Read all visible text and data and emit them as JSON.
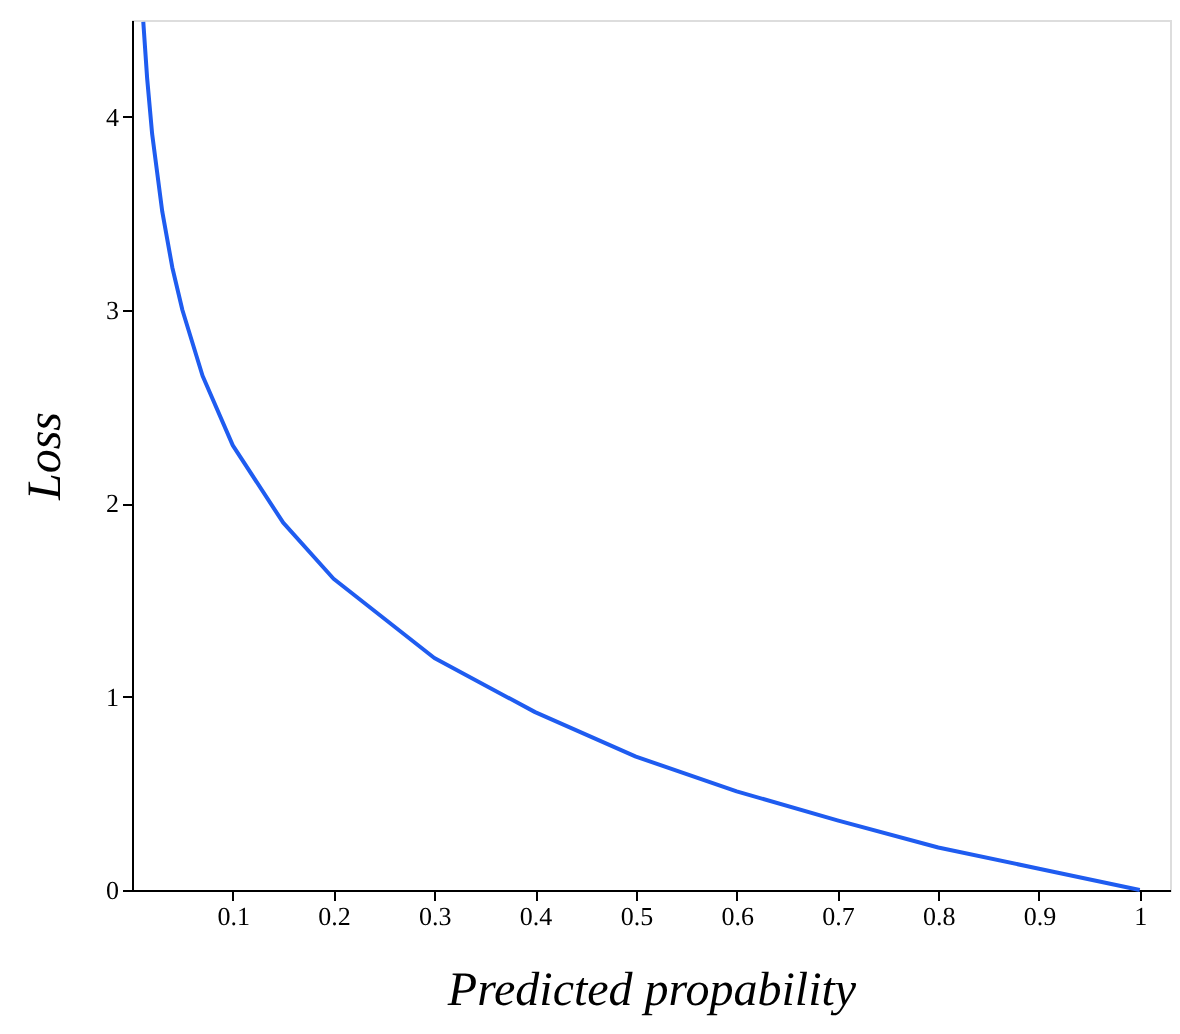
{
  "chart_data": {
    "type": "line",
    "xlabel": "Predicted  propability",
    "ylabel": "Loss",
    "x": [
      0.0112,
      0.015,
      0.02,
      0.03,
      0.04,
      0.05,
      0.07,
      0.1,
      0.15,
      0.2,
      0.3,
      0.4,
      0.5,
      0.6,
      0.7,
      0.8,
      0.9,
      1
    ],
    "series": [
      {
        "color": "#1f5cf0",
        "values": [
          4.49,
          4.2,
          3.91,
          3.51,
          3.22,
          3.0,
          2.66,
          2.3,
          1.9,
          1.61,
          1.2,
          0.92,
          0.69,
          0.51,
          0.36,
          0.22,
          0.11,
          0
        ]
      }
    ],
    "xlim": [
      0,
      1.03
    ],
    "xticks": [
      0.1,
      0.2,
      0.3,
      0.4,
      0.5,
      0.6,
      0.7,
      0.8,
      0.9,
      1
    ],
    "ylim": [
      0,
      4.5
    ],
    "yticks": [
      0,
      1,
      2,
      3,
      4
    ],
    "grid": false,
    "marker": "none",
    "line_style": "solid"
  }
}
